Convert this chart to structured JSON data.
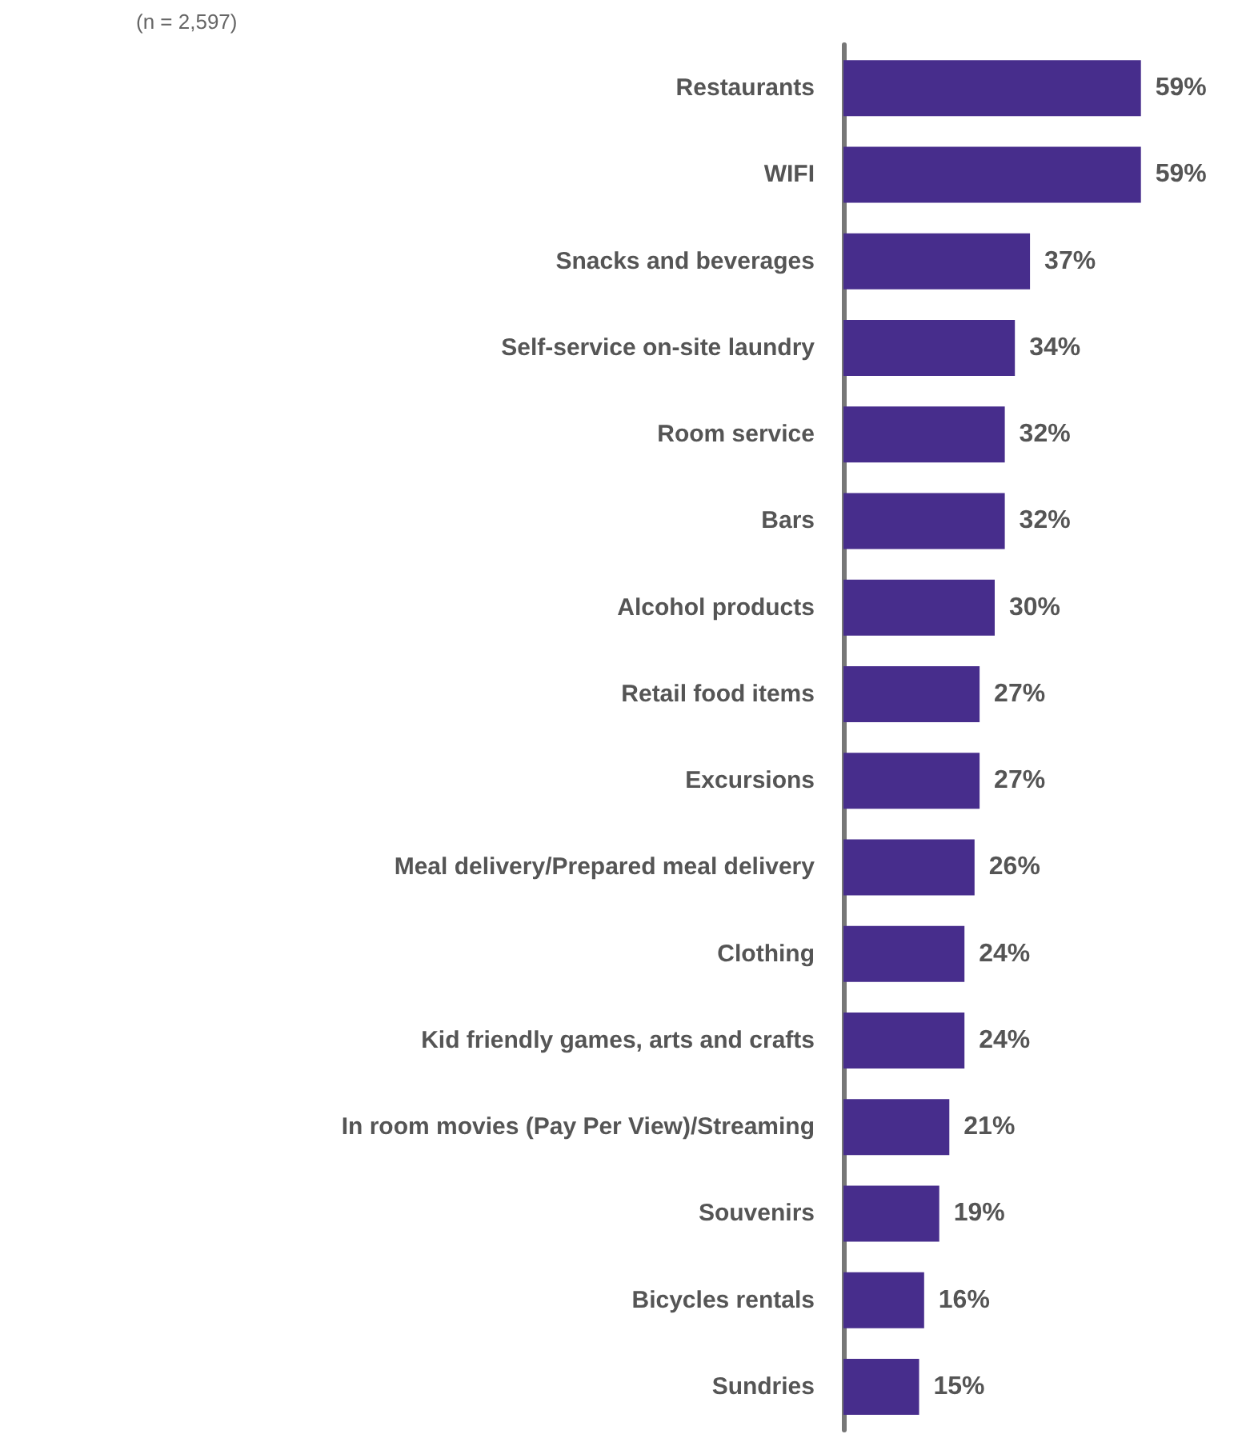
{
  "chart_data": {
    "type": "bar",
    "orientation": "horizontal",
    "subtitle": "(n = 2,597)",
    "categories": [
      "Restaurants",
      "WIFI",
      "Snacks and beverages",
      "Self-service on-site laundry",
      "Room service",
      "Bars",
      "Alcohol products",
      "Retail food items",
      "Excursions",
      "Meal delivery/Prepared meal delivery",
      "Clothing",
      "Kid friendly games, arts and crafts",
      "In room movies (Pay Per View)/Streaming",
      "Souvenirs",
      "Bicycles rentals",
      "Sundries"
    ],
    "values": [
      59,
      59,
      37,
      34,
      32,
      32,
      30,
      27,
      27,
      26,
      24,
      24,
      21,
      19,
      16,
      15
    ],
    "value_labels": [
      "59%",
      "59%",
      "37%",
      "34%",
      "32%",
      "32%",
      "30%",
      "27%",
      "27%",
      "26%",
      "24%",
      "24%",
      "21%",
      "19%",
      "16%",
      "15%"
    ],
    "color": "#472d8c",
    "tick_labels": "y"
  }
}
